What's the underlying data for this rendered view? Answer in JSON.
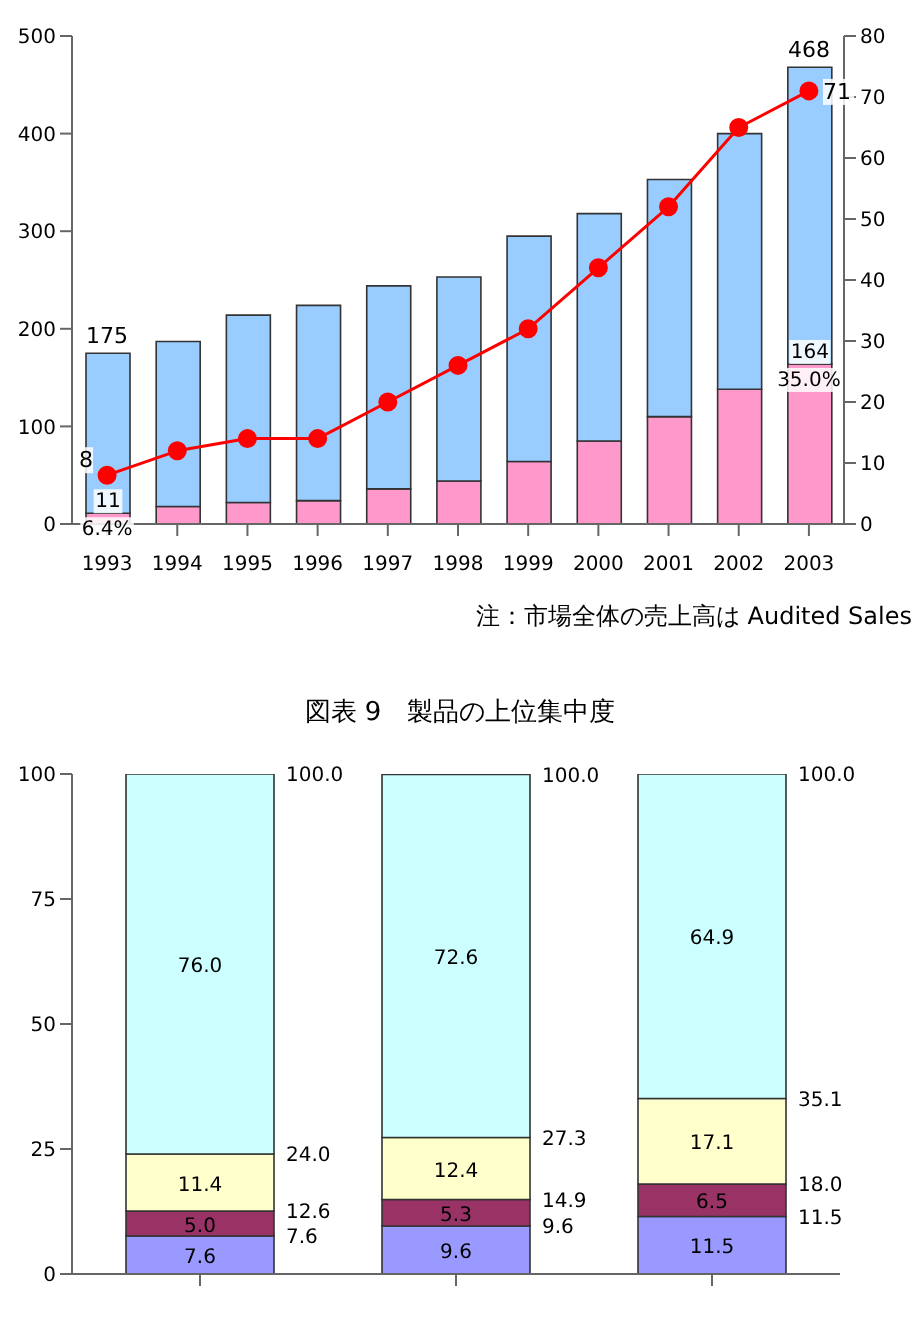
{
  "chart_data": [
    {
      "type": "bar",
      "stacked": true,
      "categories": [
        "1993",
        "1994",
        "1995",
        "1996",
        "1997",
        "1998",
        "1999",
        "2000",
        "2001",
        "2002",
        "2003"
      ],
      "series": [
        {
          "color": "#ff99cc",
          "values": [
            11,
            18,
            22,
            24,
            36,
            44,
            64,
            85,
            110,
            138,
            164
          ],
          "value_labels": [
            "11",
            null,
            null,
            null,
            null,
            null,
            null,
            null,
            null,
            null,
            "164"
          ]
        },
        {
          "color": "#99ccff",
          "values": [
            164,
            169,
            192,
            200,
            208,
            209,
            231,
            233,
            243,
            262,
            304
          ]
        },
        {
          "type": "line",
          "axis": "y2",
          "color": "#ff0000",
          "marker": "circle",
          "values": [
            8,
            12,
            14,
            14,
            20,
            26,
            32,
            42,
            52,
            65,
            71
          ],
          "value_labels": [
            "8",
            null,
            null,
            null,
            null,
            null,
            null,
            null,
            null,
            null,
            "71"
          ]
        }
      ],
      "totals": [
        "175",
        null,
        null,
        null,
        null,
        null,
        null,
        null,
        null,
        null,
        "468"
      ],
      "ylim": [
        0,
        500
      ],
      "yticks": [
        0,
        100,
        200,
        300,
        400,
        500
      ],
      "y2lim": [
        0,
        80
      ],
      "y2ticks": [
        0,
        10,
        20,
        30,
        40,
        50,
        60,
        70,
        80
      ],
      "annotations": [
        {
          "text": "6.4%",
          "x": "1993",
          "y": 11
        },
        {
          "text": "35.0%",
          "x": "2003",
          "y": 164
        },
        "注：市場全体の売上高は Audited Sales"
      ]
    },
    {
      "type": "bar",
      "stacked": true,
      "title": "図表 9　製品の上位集中度",
      "categories": [
        null,
        null,
        null
      ],
      "series": [
        {
          "color": "#9999ff",
          "values": [
            7.6,
            9.6,
            11.5
          ],
          "value_labels": [
            "7.6",
            "9.6",
            "11.5"
          ]
        },
        {
          "color": "#993366",
          "values": [
            5.0,
            5.3,
            6.5
          ],
          "value_labels": [
            "5.0",
            "5.3",
            "6.5"
          ]
        },
        {
          "color": "#ffffcc",
          "values": [
            11.4,
            12.4,
            17.1
          ],
          "value_labels": [
            "11.4",
            "12.4",
            "17.1"
          ]
        },
        {
          "color": "#ccffff",
          "values": [
            76.0,
            72.6,
            64.9
          ],
          "value_labels": [
            "76.0",
            "72.6",
            "64.9"
          ]
        }
      ],
      "ylim": [
        0,
        100
      ],
      "yticks": [
        0,
        25,
        50,
        75,
        100
      ],
      "annotations": [
        "7.6",
        "12.6",
        "24.0",
        "100.0",
        "9.6",
        "14.9",
        "27.3",
        "100.0",
        "11.5",
        "18.0",
        "35.1",
        "100.0"
      ]
    }
  ]
}
